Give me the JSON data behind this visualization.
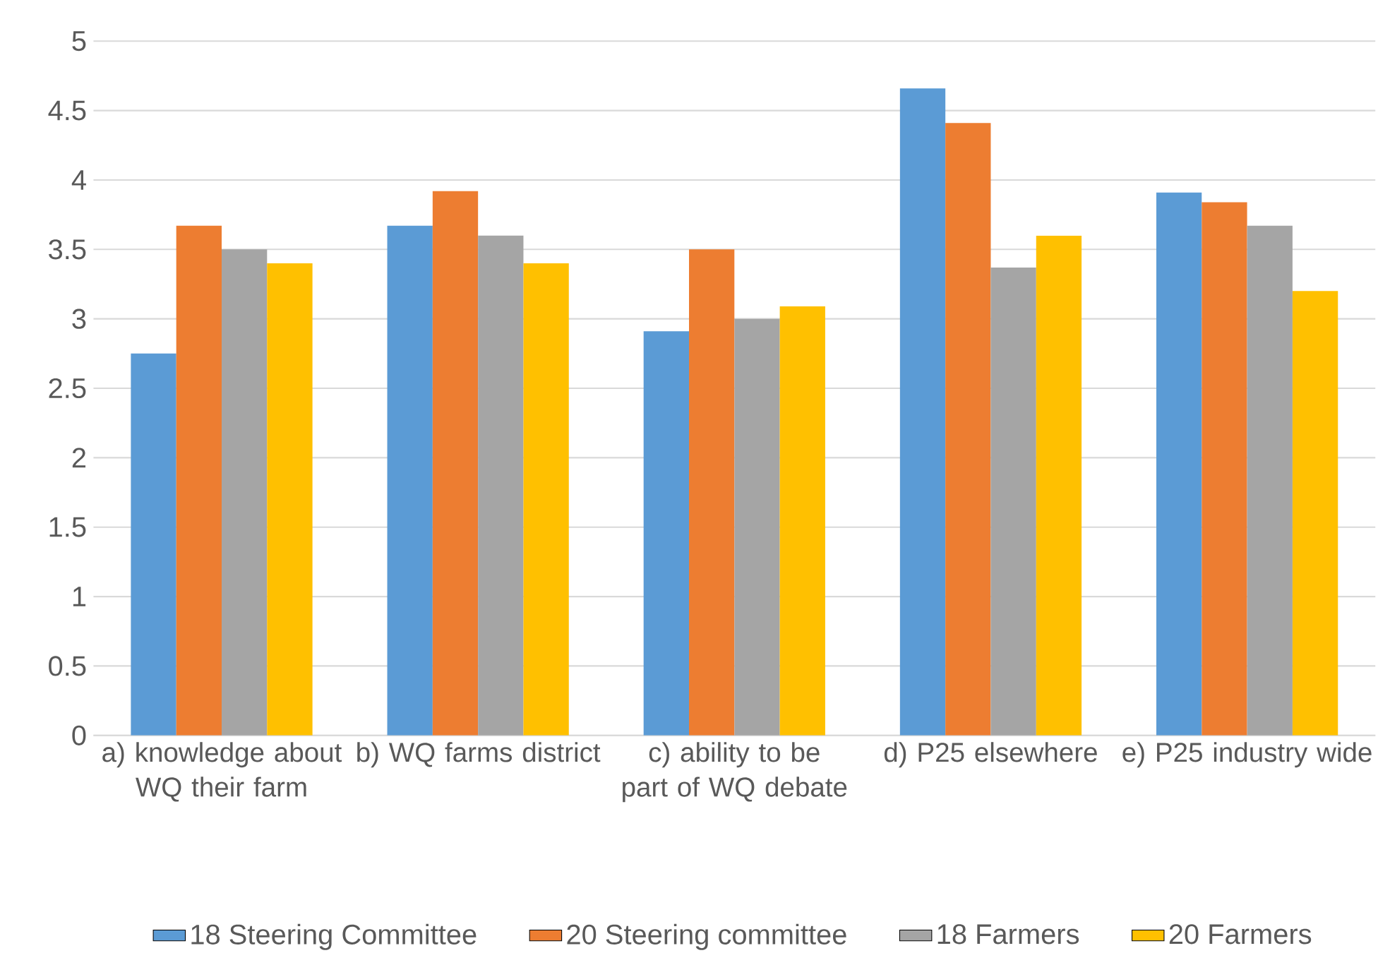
{
  "chart_data": {
    "type": "bar",
    "categories": [
      "a) knowledge about WQ their farm",
      "b) WQ farms district",
      "c) ability to be part of WQ debate",
      "d) P25 elsewhere",
      "e) P25 industry wide"
    ],
    "series": [
      {
        "name": "18 Steering Committee",
        "color": "#5b9bd5",
        "values": [
          2.75,
          3.67,
          2.91,
          4.66,
          3.91
        ]
      },
      {
        "name": "20 Steering committee",
        "color": "#ed7d31",
        "values": [
          3.67,
          3.92,
          3.5,
          4.41,
          3.84
        ]
      },
      {
        "name": "18 Farmers",
        "color": "#a5a5a5",
        "values": [
          3.5,
          3.6,
          3.0,
          3.37,
          3.67
        ]
      },
      {
        "name": "20 Farmers",
        "color": "#ffc000",
        "values": [
          3.4,
          3.4,
          3.09,
          3.6,
          3.2
        ]
      }
    ],
    "ylim": [
      0,
      5
    ],
    "yticks": [
      0,
      0.5,
      1,
      1.5,
      2,
      2.5,
      3,
      3.5,
      4,
      4.5,
      5
    ],
    "grid": "y",
    "legend": "bottom"
  }
}
